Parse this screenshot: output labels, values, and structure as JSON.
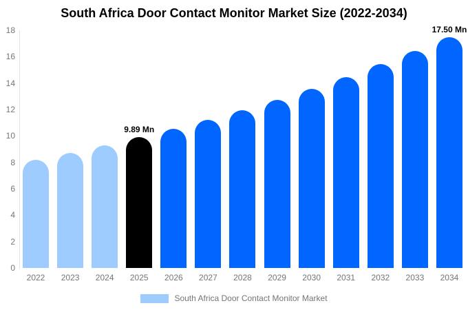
{
  "chart_data": {
    "type": "bar",
    "title": "South Africa Door Contact Monitor Market Size (2022-2034)",
    "categories": [
      "2022",
      "2023",
      "2024",
      "2025",
      "2026",
      "2027",
      "2028",
      "2029",
      "2030",
      "2031",
      "2032",
      "2033",
      "2034"
    ],
    "values": [
      8.17,
      8.71,
      9.28,
      9.89,
      10.54,
      11.23,
      11.96,
      12.75,
      13.58,
      14.47,
      15.42,
      16.43,
      17.5
    ],
    "unit": "Mn",
    "xlabel": "",
    "ylabel": "",
    "ylim": [
      0,
      18
    ],
    "y_ticks": [
      0,
      2,
      4,
      6,
      8,
      10,
      12,
      14,
      16,
      18
    ],
    "grid": false,
    "bar_colors": [
      "#9fccff",
      "#9fccff",
      "#9fccff",
      "#000000",
      "#0066ff",
      "#0066ff",
      "#0066ff",
      "#0066ff",
      "#0066ff",
      "#0066ff",
      "#0066ff",
      "#0066ff",
      "#0066ff"
    ],
    "colors": {
      "historical": "#9fccff",
      "base_year": "#000000",
      "forecast": "#0066ff",
      "axis_line": "#e3e3e3",
      "tick_text": "#757575"
    },
    "annotations": [
      {
        "category": "2025",
        "text": "9.89 Mn"
      },
      {
        "category": "2034",
        "text": "17.50 Mn"
      }
    ],
    "legend": {
      "position": "bottom",
      "label": "South Africa Door Contact Monitor Market",
      "swatch_color": "#9fccff"
    }
  }
}
